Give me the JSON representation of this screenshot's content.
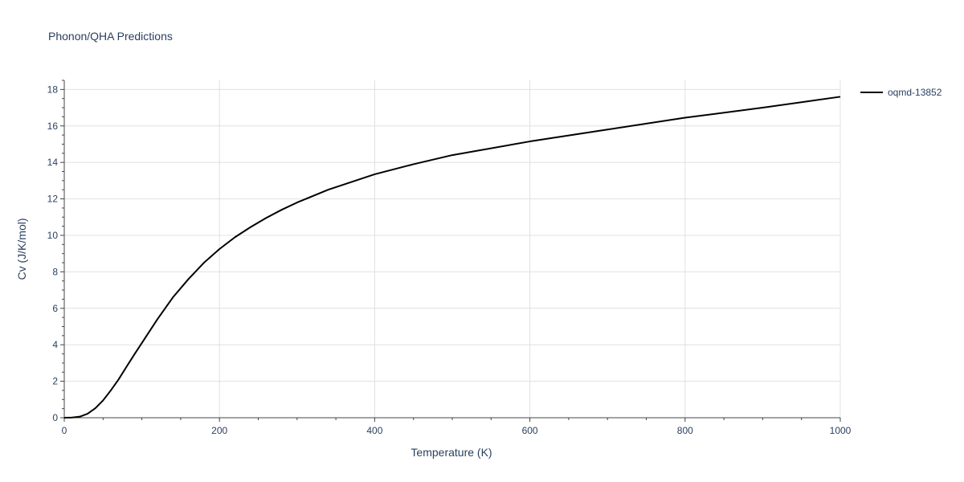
{
  "chart_data": {
    "type": "line",
    "title": "Phonon/QHA Predictions",
    "xlabel": "Temperature (K)",
    "ylabel": "Cv (J/K/mol)",
    "xlim": [
      0,
      1000
    ],
    "ylim": [
      0,
      18.5
    ],
    "x_ticks": [
      0,
      200,
      400,
      600,
      800,
      1000
    ],
    "y_ticks": [
      0,
      2,
      4,
      6,
      8,
      10,
      12,
      14,
      16,
      18
    ],
    "grid": true,
    "legend_position": "top-right",
    "series": [
      {
        "name": "oqmd-13852",
        "color": "#000000",
        "x": [
          0,
          10,
          20,
          30,
          40,
          50,
          60,
          70,
          80,
          90,
          100,
          120,
          140,
          160,
          180,
          200,
          220,
          240,
          260,
          280,
          300,
          340,
          400,
          450,
          500,
          600,
          700,
          800,
          900,
          1000
        ],
        "y": [
          0,
          0.01,
          0.06,
          0.22,
          0.52,
          0.95,
          1.5,
          2.1,
          2.78,
          3.45,
          4.1,
          5.4,
          6.6,
          7.6,
          8.5,
          9.25,
          9.9,
          10.45,
          10.95,
          11.4,
          11.8,
          12.5,
          13.35,
          13.9,
          14.4,
          15.15,
          15.8,
          16.45,
          17.0,
          17.6
        ]
      }
    ]
  }
}
